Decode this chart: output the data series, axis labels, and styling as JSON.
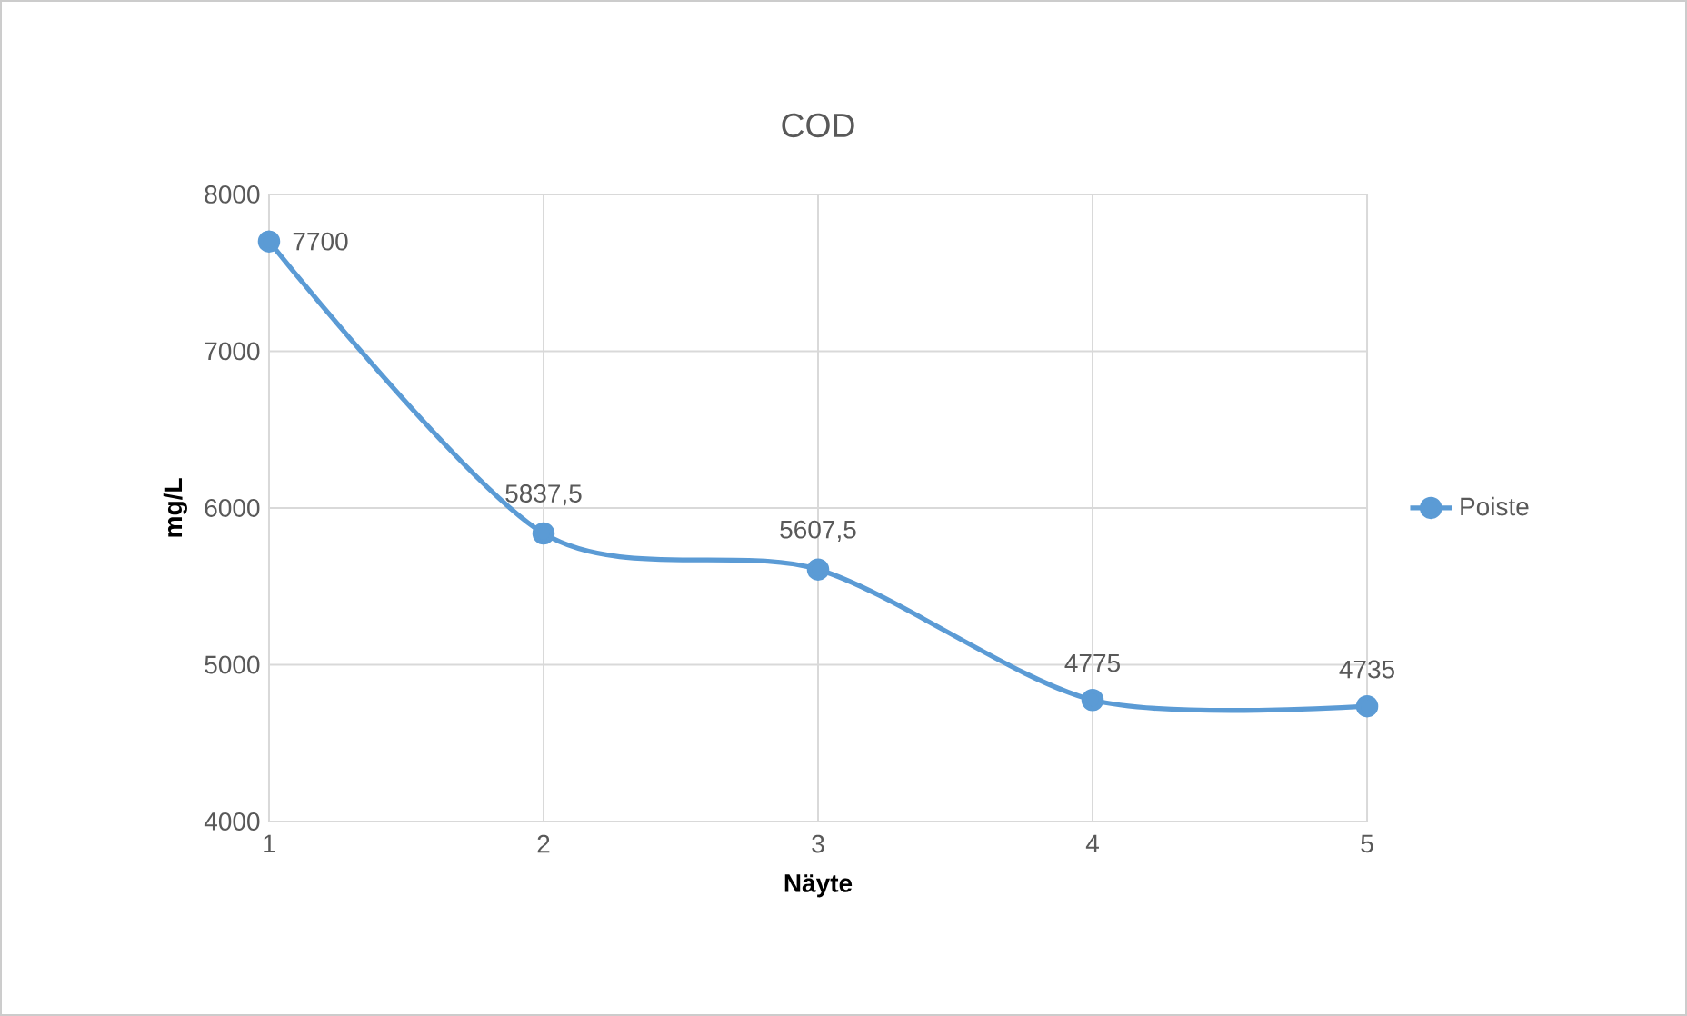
{
  "chart_data": {
    "type": "line",
    "title": "COD",
    "xlabel": "Näyte",
    "ylabel": "mg/L",
    "x": [
      1,
      2,
      3,
      4,
      5
    ],
    "series": [
      {
        "name": "Poiste",
        "color": "#5b9bd5",
        "values": [
          7700,
          5837.5,
          5607.5,
          4775,
          4735
        ],
        "value_labels": [
          "7700",
          "5837,5",
          "5607,5",
          "4775",
          "4735"
        ]
      }
    ],
    "xlim": [
      1,
      5
    ],
    "xticks": [
      1,
      2,
      3,
      4,
      5
    ],
    "ylim": [
      4000,
      8000
    ],
    "yticks": [
      4000,
      5000,
      6000,
      7000,
      8000
    ],
    "grid": true,
    "legend": "right",
    "marker": "circle",
    "line_style": "solid"
  }
}
